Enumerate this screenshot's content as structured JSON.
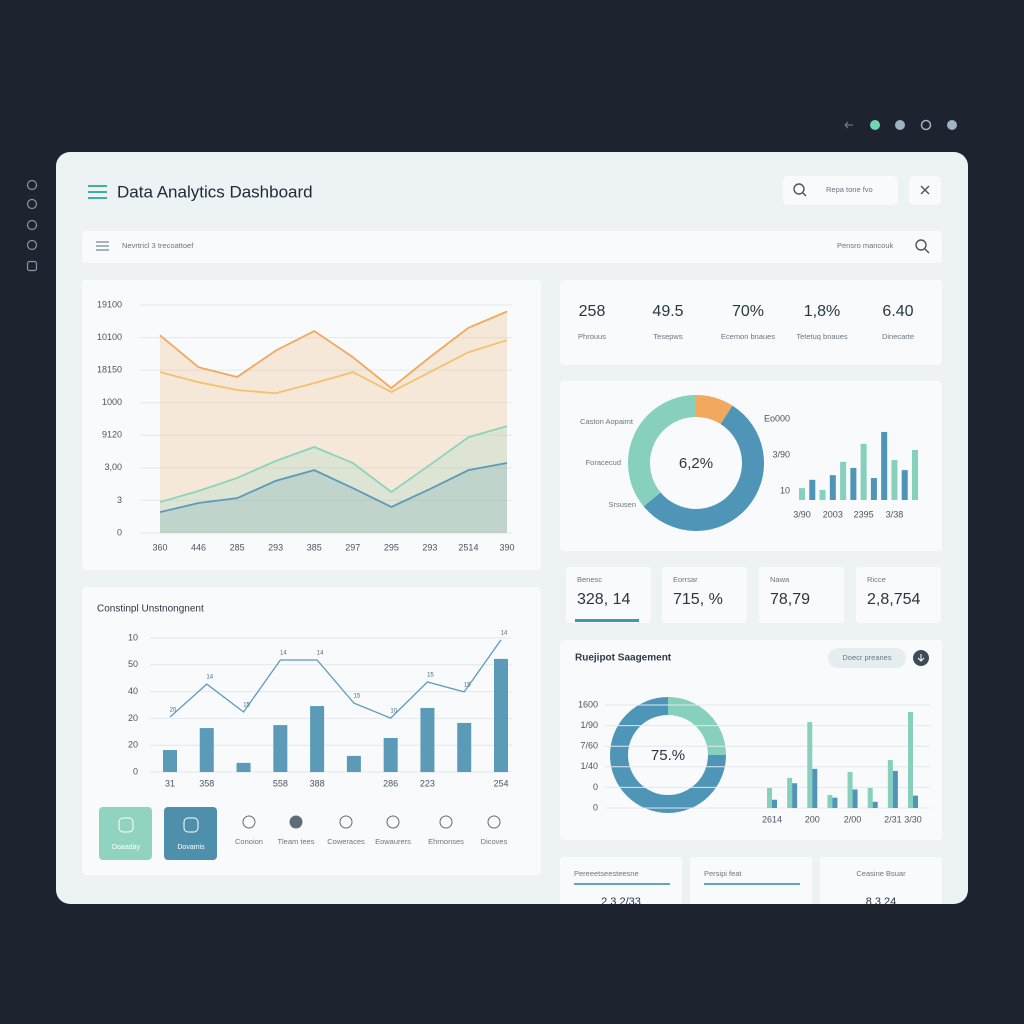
{
  "header": {
    "title": "Data Analytics Dashboard",
    "search": "Repa tone fvo"
  },
  "toolbar": {
    "left": "Nevrtricl 3 trecoattoef",
    "right": "Pensro mancouk"
  },
  "kpis": [
    {
      "value": "258",
      "label": "Phrouus"
    },
    {
      "value": "49.5",
      "label": "Tesepws"
    },
    {
      "value": "70%",
      "label": "Ecemon bnaues"
    },
    {
      "value": "1,8%",
      "label": "Tetetuq bnaues"
    },
    {
      "value": "6.40",
      "label": "Dinecarte"
    }
  ],
  "kpis2": [
    {
      "label": "Benesc",
      "value": "328, 14"
    },
    {
      "label": "Eorrsar",
      "value": "715, %"
    },
    {
      "label": "Nawa",
      "value": "78,79"
    },
    {
      "label": "Ricce",
      "value": "2,8,754"
    }
  ],
  "segment_panel": {
    "title": "Ruejipot Saagement",
    "button": "Doecr preanes"
  },
  "bottom_cards": [
    {
      "title": "Pereeetseesteesne",
      "value": "2 3 2/33"
    },
    {
      "title": "Persipi feat"
    },
    {
      "title": "Ceasine Bsuar",
      "value": "8 3 24"
    }
  ],
  "actions": [
    {
      "label": "Doaaday"
    },
    {
      "label": "Dovamis"
    },
    {
      "label": "Conoion"
    },
    {
      "label": "Tleam tees"
    },
    {
      "label": "Coweraces"
    },
    {
      "label": "Eowaurers"
    },
    {
      "label": "Ehrnonses"
    },
    {
      "label": "Dicoves"
    }
  ],
  "chart_data": [
    {
      "type": "line",
      "categories": [
        "360",
        "446",
        "285",
        "293",
        "385",
        "297",
        "295",
        "293",
        "2514",
        "390"
      ],
      "ylim": [
        0,
        7
      ],
      "yticks": [
        0,
        {
          "value": 1,
          "label": "3"
        },
        {
          "value": 2,
          "label": "3,00"
        },
        {
          "value": 3,
          "label": "9120"
        },
        {
          "value": 4,
          "label": "1000"
        },
        {
          "value": 5,
          "label": "18150"
        },
        {
          "value": 6,
          "label": "10100"
        },
        {
          "value": 7,
          "label": "19100"
        }
      ],
      "grid": true,
      "series": [
        {
          "color": "#f0a95e",
          "area": true,
          "values": [
            6.07,
            5.09,
            4.79,
            5.6,
            6.2,
            5.4,
            4.45,
            5.4,
            6.3,
            6.8
          ]
        },
        {
          "color": "#f2c26e",
          "area": false,
          "values": [
            4.94,
            4.63,
            4.39,
            4.29,
            4.6,
            4.94,
            4.33,
            4.94,
            5.55,
            5.92
          ]
        },
        {
          "color": "#8ad4bf",
          "area": true,
          "values": [
            0.95,
            1.29,
            1.69,
            2.21,
            2.64,
            2.15,
            1.26,
            2.09,
            2.94,
            3.28
          ]
        },
        {
          "color": "#5b9bb8",
          "area": true,
          "values": [
            0.64,
            0.92,
            1.07,
            1.6,
            1.93,
            1.38,
            0.8,
            1.35,
            1.93,
            2.15
          ]
        }
      ]
    },
    {
      "type": "bar_line",
      "title": "Constinpl Unstnongnent",
      "categories": [
        "31",
        "358",
        null,
        "558",
        "388",
        null,
        "286",
        "223",
        null,
        "254"
      ],
      "ylim": [
        0,
        5
      ],
      "yticks": [
        0,
        {
          "value": 1,
          "label": "20"
        },
        {
          "value": 2,
          "label": "20"
        },
        {
          "value": 3,
          "label": "40"
        },
        {
          "value": 4,
          "label": "50"
        },
        {
          "value": 5,
          "label": "10"
        }
      ],
      "grid": true,
      "series": [
        {
          "type": "bar",
          "color": "#5b9bb8",
          "values": [
            0.82,
            1.64,
            0.34,
            1.75,
            2.46,
            0.6,
            1.27,
            2.39,
            1.83,
            4.22
          ]
        },
        {
          "type": "line",
          "color": "#5b9bb8",
          "values": [
            2.05,
            3.28,
            2.24,
            4.18,
            4.18,
            2.57,
            2.01,
            3.36,
            2.99,
            4.93
          ],
          "point_labels": [
            "20",
            "14",
            "15",
            "14",
            "14",
            "15",
            "10",
            "15",
            "15",
            "14"
          ]
        }
      ]
    },
    {
      "type": "donut",
      "center_label": "6,2%",
      "labels": [
        "Caston Aopaimt",
        "Foracecud",
        "Srsusen"
      ],
      "values": [
        9,
        55,
        36
      ],
      "colors": [
        "#f0a95e",
        "#4f95b8",
        "#86d0bd"
      ]
    },
    {
      "type": "bar",
      "categories": [
        "3/90",
        null,
        null,
        "2003",
        null,
        null,
        "2395",
        null,
        null,
        "3/38",
        null,
        null
      ],
      "values": [
        0.33,
        0.56,
        0.28,
        0.69,
        1.06,
        0.89,
        1.56,
        0.61,
        1.89,
        1.11,
        0.83,
        1.39
      ],
      "colors": [
        "#86d0bd",
        "#4f95b8",
        "#86d0bd",
        "#4f95b8",
        "#86d0bd",
        "#4f95b8",
        "#86d0bd",
        "#4f95b8",
        "#4f95b8",
        "#86d0bd",
        "#4f95b8",
        "#86d0bd"
      ],
      "ylim": [
        0,
        2.5
      ],
      "yticks": [
        {
          "value": 0.25,
          "label": "10"
        },
        {
          "value": 1.25,
          "label": "3/90"
        },
        {
          "value": 2.25,
          "label": "Eo000"
        }
      ],
      "grid": false
    },
    {
      "type": "donut",
      "center_label": "75.%",
      "values": [
        25,
        75
      ],
      "colors": [
        "#86d0bd",
        "#4f95b8"
      ]
    },
    {
      "type": "grouped_bar",
      "categories": [
        "2614",
        null,
        "200",
        null,
        "2/00",
        null,
        "2/31",
        "3/30"
      ],
      "ylim": [
        0,
        5
      ],
      "yticks": [
        0,
        {
          "value": 1,
          "label": "0"
        },
        {
          "value": 2,
          "label": "1/40"
        },
        {
          "value": 3,
          "label": "7/60"
        },
        {
          "value": 4,
          "label": "1/90"
        },
        {
          "value": 5,
          "label": "1600"
        }
      ],
      "grid": true,
      "series": [
        {
          "color": "#86d0bd",
          "values": [
            0.97,
            1.46,
            4.17,
            0.63,
            1.75,
            0.97,
            2.33,
            4.66
          ]
        },
        {
          "color": "#4f95b8",
          "values": [
            0.4,
            1.2,
            1.9,
            0.5,
            0.9,
            0.3,
            1.8,
            0.6
          ]
        }
      ]
    }
  ]
}
